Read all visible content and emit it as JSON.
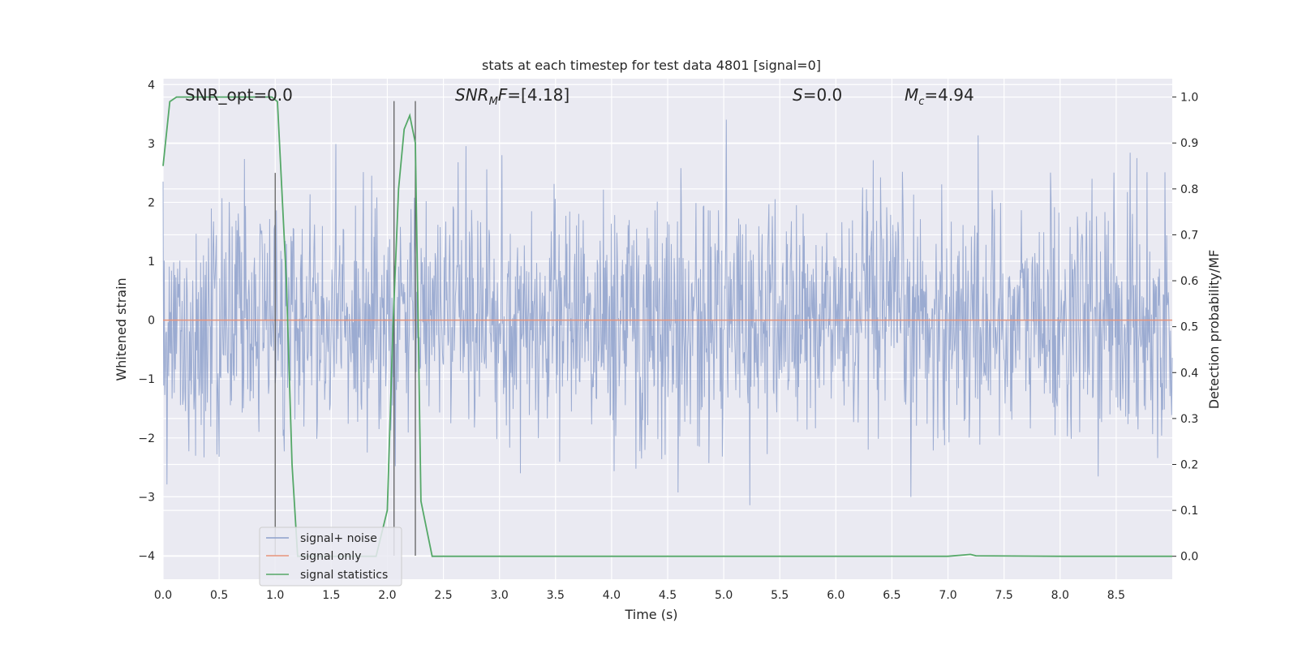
{
  "chart_data": {
    "type": "line",
    "title": "stats at each timestep for test data 4801 [signal=0]",
    "xlabel": "Time (s)",
    "ylabel": "Whitened strain",
    "y2label": "Detection probability/MF",
    "xlim": [
      0.0,
      9.0
    ],
    "ylim": [
      -4.4,
      4.1
    ],
    "y2lim": [
      -0.05,
      1.04
    ],
    "xticks": [
      "0.0",
      "0.5",
      "1.0",
      "1.5",
      "2.0",
      "2.5",
      "3.0",
      "3.5",
      "4.0",
      "4.5",
      "5.0",
      "5.5",
      "6.0",
      "6.5",
      "7.0",
      "7.5",
      "8.0",
      "8.5"
    ],
    "yticks": [
      "4",
      "3",
      "2",
      "1",
      "0",
      "−1",
      "−2",
      "−3",
      "−4"
    ],
    "y2ticks": [
      "1.0",
      "0.9",
      "0.8",
      "0.7",
      "0.6",
      "0.5",
      "0.4",
      "0.3",
      "0.2",
      "0.1",
      "0.0"
    ],
    "grid": true,
    "legend_position": "lower-left",
    "annotations": {
      "snr_opt": "SNR_opt=0.0",
      "snr_mf_prefix": "SNR",
      "snr_mf_sub": "M",
      "snr_mf_mid": "F",
      "snr_mf_value": "=[4.18]",
      "s_sym": "S",
      "s_value": "=0.0",
      "mc_sym": "M",
      "mc_sub": "c",
      "mc_value": "=4.94"
    },
    "colors": {
      "noise": "#8da0cb",
      "signal_only": "#e8947a",
      "statistics": "#55a868",
      "background": "#eaeaf2",
      "grid": "#ffffff",
      "vlines": "#555555"
    },
    "series": [
      {
        "name": "signal+ noise",
        "kind": "noise",
        "std": 1.0,
        "n_samples": 1800,
        "x_range": [
          0.0,
          9.0
        ]
      },
      {
        "name": "signal only",
        "x": [
          0.0,
          9.0
        ],
        "y": [
          0.0,
          0.0
        ]
      },
      {
        "name": "signal statistics",
        "axis": "right",
        "x": [
          0.0,
          0.06,
          0.12,
          0.25,
          0.5,
          0.75,
          0.97,
          1.02,
          1.1,
          1.15,
          1.2,
          1.5,
          1.9,
          2.0,
          2.05,
          2.1,
          2.15,
          2.2,
          2.25,
          2.3,
          2.4,
          3.0,
          5.0,
          7.0,
          7.15,
          7.2,
          7.25,
          8.0,
          9.0
        ],
        "y": [
          0.85,
          0.99,
          1.0,
          1.0,
          1.0,
          1.0,
          1.0,
          0.99,
          0.6,
          0.2,
          0.0,
          0.0,
          0.0,
          0.1,
          0.5,
          0.8,
          0.93,
          0.96,
          0.9,
          0.12,
          0.0,
          0.0,
          0.0,
          0.0,
          0.003,
          0.004,
          0.001,
          0.0,
          0.0
        ]
      }
    ],
    "vlines": [
      {
        "x": 1.0,
        "ymin_strain": -4.0,
        "ymax_strain": 2.5
      },
      {
        "x": 2.06,
        "ymin_strain": -4.0,
        "ymax_strain": 3.72
      },
      {
        "x": 2.25,
        "ymin_strain": -4.0,
        "ymax_strain": 3.72
      }
    ]
  }
}
